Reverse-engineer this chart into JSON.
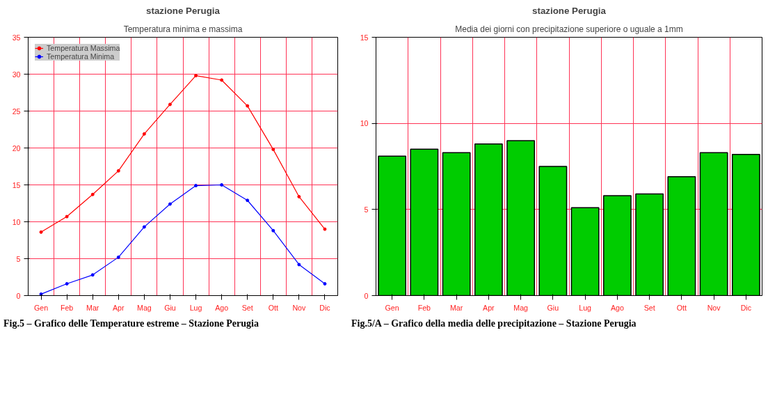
{
  "chart_data": [
    {
      "type": "line",
      "title": "stazione Perugia",
      "subtitle": "Temperatura minima e massima",
      "categories": [
        "Gen",
        "Feb",
        "Mar",
        "Apr",
        "Mag",
        "Giu",
        "Lug",
        "Ago",
        "Set",
        "Ott",
        "Nov",
        "Dic"
      ],
      "series": [
        {
          "name": "Temperatura Massima",
          "color": "#ff0000",
          "values": [
            8.6,
            10.7,
            13.7,
            16.9,
            21.9,
            25.9,
            29.8,
            29.2,
            25.7,
            19.8,
            13.4,
            9.0
          ]
        },
        {
          "name": "Temperatura Minima",
          "color": "#0000ff",
          "values": [
            0.2,
            1.6,
            2.8,
            5.2,
            9.3,
            12.4,
            14.9,
            15.0,
            12.9,
            8.8,
            4.2,
            1.6
          ]
        }
      ],
      "ylim": [
        0,
        35
      ],
      "yticks": [
        0,
        5,
        10,
        15,
        20,
        25,
        30,
        35
      ],
      "grid": true,
      "legend": "top left",
      "marker": "circle",
      "line_style": "solid",
      "annotations": [
        "Fig.5 – Grafico delle Temperature estreme – Stazione Perugia"
      ]
    },
    {
      "type": "bar",
      "title": "stazione Perugia",
      "subtitle": "Media dei giorni con precipitazione superiore o uguale a 1mm",
      "categories": [
        "Gen",
        "Feb",
        "Mar",
        "Apr",
        "Mag",
        "Giu",
        "Lug",
        "Ago",
        "Set",
        "Ott",
        "Nov",
        "Dic"
      ],
      "values": [
        8.1,
        8.5,
        8.3,
        8.8,
        9.0,
        7.5,
        5.1,
        5.8,
        5.9,
        6.9,
        8.3,
        8.2
      ],
      "color": "#00cc00",
      "ylim": [
        0,
        15
      ],
      "yticks": [
        0,
        5,
        10,
        15
      ],
      "grid": true,
      "annotations": [
        "Fig.5/A – Grafico della media delle precipitazione – Stazione Perugia"
      ]
    }
  ]
}
